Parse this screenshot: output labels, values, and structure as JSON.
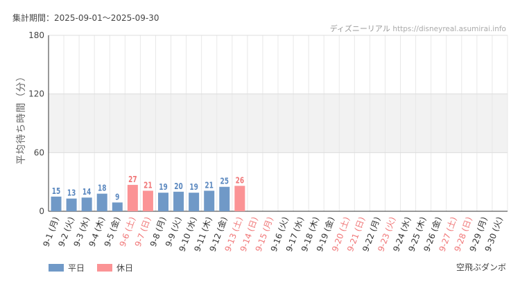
{
  "header": {
    "period": "集計期間：2025-09-01〜2025-09-30",
    "credit_name": "ディズニーリアル",
    "credit_url": "https://disneyreal.asumirai.info"
  },
  "footer": {
    "attraction": "空飛ぶダンボ"
  },
  "colors": {
    "weekday": "#7099c7",
    "holiday": "#fb9395",
    "weekday_text": "#5b88bf",
    "holiday_text": "#f07778",
    "band": "#f2f2f2"
  },
  "chart_data": {
    "type": "bar",
    "ylabel": "平均待ち時間（分）",
    "ylim": [
      0,
      180
    ],
    "yticks": [
      0,
      60,
      120,
      180
    ],
    "highlight_band": [
      60,
      120
    ],
    "grid": true,
    "legend_position": "bottom-left",
    "legend": [
      {
        "label": "平日",
        "kind": "weekday"
      },
      {
        "label": "休日",
        "kind": "holiday"
      }
    ],
    "categories": [
      "9-1 (月)",
      "9-2 (火)",
      "9-3 (水)",
      "9-4 (木)",
      "9-5 (金)",
      "9-6 (土)",
      "9-7 (日)",
      "9-8 (月)",
      "9-9 (火)",
      "9-10 (水)",
      "9-11 (木)",
      "9-12 (金)",
      "9-13 (土)",
      "9-14 (日)",
      "9-15 (月)",
      "9-16 (火)",
      "9-17 (水)",
      "9-18 (木)",
      "9-19 (金)",
      "9-20 (土)",
      "9-21 (日)",
      "9-22 (月)",
      "9-23 (火)",
      "9-24 (水)",
      "9-25 (木)",
      "9-26 (金)",
      "9-27 (土)",
      "9-28 (日)",
      "9-29 (月)",
      "9-30 (火)"
    ],
    "day_type": [
      "weekday",
      "weekday",
      "weekday",
      "weekday",
      "weekday",
      "holiday",
      "holiday",
      "weekday",
      "weekday",
      "weekday",
      "weekday",
      "weekday",
      "holiday",
      "holiday",
      "holiday",
      "weekday",
      "weekday",
      "weekday",
      "weekday",
      "holiday",
      "holiday",
      "weekday",
      "holiday",
      "weekday",
      "weekday",
      "weekday",
      "holiday",
      "holiday",
      "weekday",
      "weekday"
    ],
    "values": [
      15,
      13,
      14,
      18,
      9,
      27,
      21,
      19,
      20,
      19,
      21,
      25,
      26,
      null,
      null,
      null,
      null,
      null,
      null,
      null,
      null,
      null,
      null,
      null,
      null,
      null,
      null,
      null,
      null,
      null
    ]
  }
}
